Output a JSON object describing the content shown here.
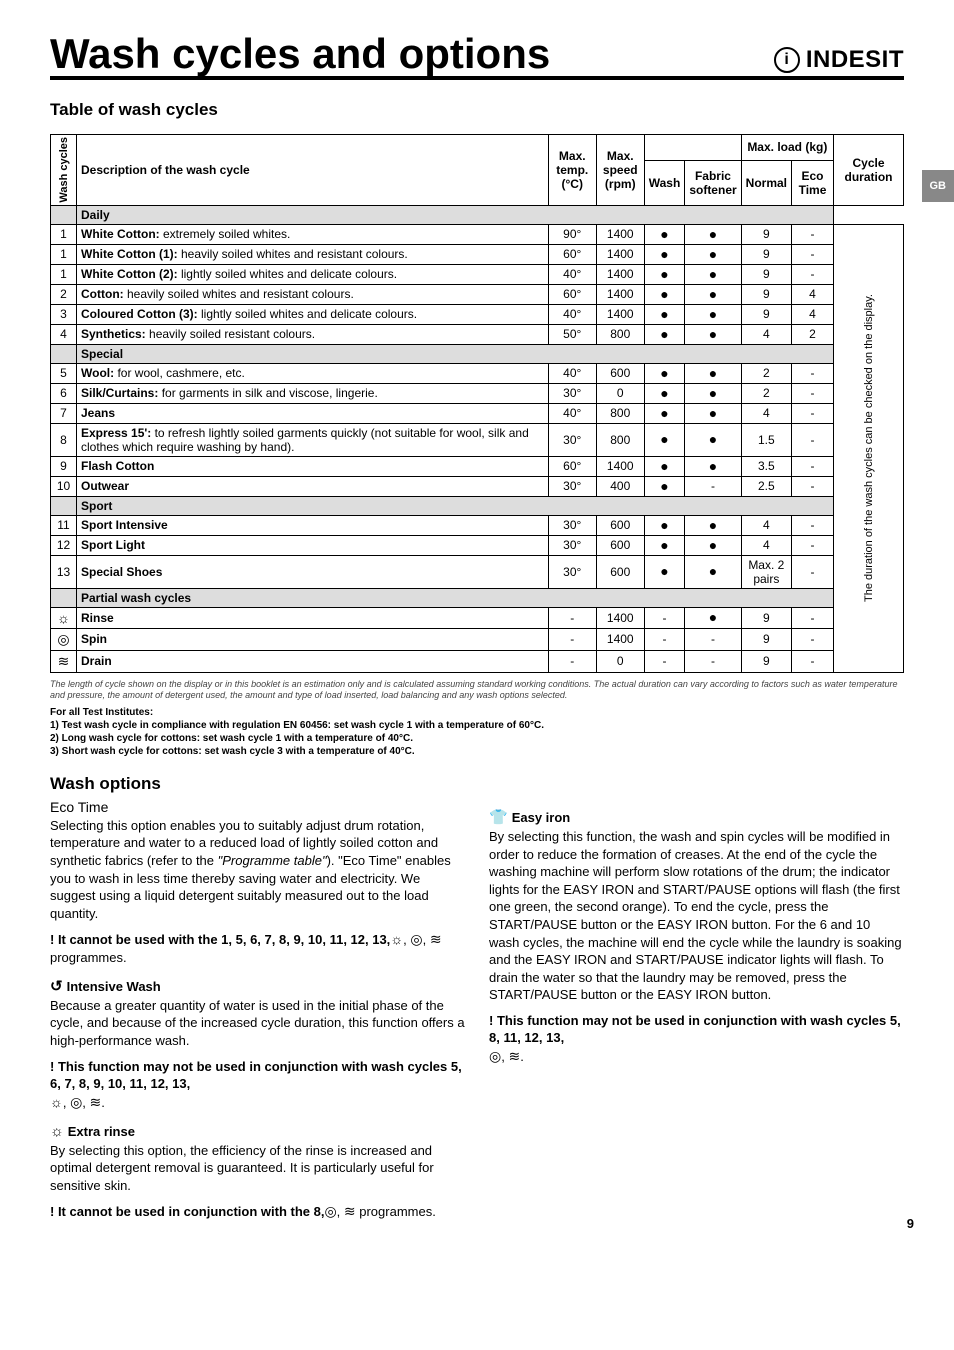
{
  "page": {
    "title": "Wash cycles and options",
    "brand": "INDESIT",
    "lang_tab": "GB",
    "page_number": "9"
  },
  "table": {
    "heading": "Table of wash cycles",
    "headers": {
      "wash_cycles": "Wash cycles",
      "description": "Description of the wash cycle",
      "max_temp": "Max. temp. (°C)",
      "max_speed": "Max. speed (rpm)",
      "wash": "Wash",
      "softener": "Fabric softener",
      "max_load": "Max. load (kg)",
      "normal": "Normal",
      "eco_time": "Eco Time",
      "duration": "Cycle duration",
      "duration_note": "The duration of the wash cycles can be checked on the display."
    },
    "sections": [
      {
        "label": "Daily"
      },
      {
        "label": "Special"
      },
      {
        "label": "Sport"
      },
      {
        "label": "Partial wash cycles"
      }
    ],
    "rows": {
      "r0": {
        "n": "1",
        "d": "White Cotton:",
        "d2": " extremely soiled whites.",
        "t": "90°",
        "s": "1400",
        "w": "●",
        "f": "●",
        "nl": "9",
        "e": "-"
      },
      "r1": {
        "n": "1",
        "d": "White Cotton (1):",
        "d2": " heavily soiled whites and resistant colours.",
        "t": "60°",
        "s": "1400",
        "w": "●",
        "f": "●",
        "nl": "9",
        "e": "-"
      },
      "r2": {
        "n": "1",
        "d": "White Cotton (2):",
        "d2": " lightly soiled whites and delicate colours.",
        "t": "40°",
        "s": "1400",
        "w": "●",
        "f": "●",
        "nl": "9",
        "e": "-"
      },
      "r3": {
        "n": "2",
        "d": "Cotton:",
        "d2": " heavily soiled whites and resistant colours.",
        "t": "60°",
        "s": "1400",
        "w": "●",
        "f": "●",
        "nl": "9",
        "e": "4"
      },
      "r4": {
        "n": "3",
        "d": "Coloured Cotton (3):",
        "d2": " lightly soiled whites and delicate colours.",
        "t": "40°",
        "s": "1400",
        "w": "●",
        "f": "●",
        "nl": "9",
        "e": "4"
      },
      "r5": {
        "n": "4",
        "d": "Synthetics:",
        "d2": " heavily soiled resistant colours.",
        "t": "50°",
        "s": "800",
        "w": "●",
        "f": "●",
        "nl": "4",
        "e": "2"
      },
      "r6": {
        "n": "5",
        "d": "Wool:",
        "d2": " for wool, cashmere, etc.",
        "t": "40°",
        "s": "600",
        "w": "●",
        "f": "●",
        "nl": "2",
        "e": "-"
      },
      "r7": {
        "n": "6",
        "d": "Silk/Curtains:",
        "d2": " for garments in silk and viscose, lingerie.",
        "t": "30°",
        "s": "0",
        "w": "●",
        "f": "●",
        "nl": "2",
        "e": "-"
      },
      "r8": {
        "n": "7",
        "d": "Jeans",
        "d2": "",
        "t": "40°",
        "s": "800",
        "w": "●",
        "f": "●",
        "nl": "4",
        "e": "-"
      },
      "r9": {
        "n": "8",
        "d": "Express 15':",
        "d2": " to refresh lightly soiled garments quickly (not suitable for wool, silk and clothes which require washing by hand).",
        "t": "30°",
        "s": "800",
        "w": "●",
        "f": "●",
        "nl": "1.5",
        "e": "-"
      },
      "r10": {
        "n": "9",
        "d": "Flash Cotton",
        "d2": "",
        "t": "60°",
        "s": "1400",
        "w": "●",
        "f": "●",
        "nl": "3.5",
        "e": "-"
      },
      "r11": {
        "n": "10",
        "d": "Outwear",
        "d2": "",
        "t": "30°",
        "s": "400",
        "w": "●",
        "f": "-",
        "nl": "2.5",
        "e": "-"
      },
      "r12": {
        "n": "11",
        "d": "Sport Intensive",
        "d2": "",
        "t": "30°",
        "s": "600",
        "w": "●",
        "f": "●",
        "nl": "4",
        "e": "-"
      },
      "r13": {
        "n": "12",
        "d": "Sport Light",
        "d2": "",
        "t": "30°",
        "s": "600",
        "w": "●",
        "f": "●",
        "nl": "4",
        "e": "-"
      },
      "r14": {
        "n": "13",
        "d": "Special Shoes",
        "d2": "",
        "t": "30°",
        "s": "600",
        "w": "●",
        "f": "●",
        "nl": "Max. 2 pairs",
        "e": "-"
      },
      "r15": {
        "n": "",
        "sym": "rinse",
        "d": "Rinse",
        "d2": "",
        "t": "-",
        "s": "1400",
        "w": "-",
        "f": "●",
        "nl": "9",
        "e": "-"
      },
      "r16": {
        "n": "",
        "sym": "spin",
        "d": "Spin",
        "d2": "",
        "t": "-",
        "s": "1400",
        "w": "-",
        "f": "-",
        "nl": "9",
        "e": "-"
      },
      "r17": {
        "n": "",
        "sym": "drain",
        "d": "Drain",
        "d2": "",
        "t": "-",
        "s": "0",
        "w": "-",
        "f": "-",
        "nl": "9",
        "e": "-"
      }
    }
  },
  "footnotes": {
    "italic": "The length of cycle shown on the display or in this booklet is an estimation only and is calculated assuming standard working conditions. The actual duration can vary according to factors such as water temperature and pressure, the amount of detergent used, the amount and type of load inserted, load balancing and any wash options selected.",
    "bold_head": "For all Test Institutes:",
    "l1": "1) Test wash cycle in compliance with regulation EN 60456: set wash cycle 1 with a temperature of 60°C.",
    "l2": "2) Long wash cycle for cottons: set wash cycle 1 with a temperature of 40°C.",
    "l3": "3) Short wash cycle for cottons: set wash cycle 3 with a temperature of 40°C."
  },
  "options": {
    "heading": "Wash options",
    "eco": {
      "title": "Eco Time",
      "body": "Selecting this option enables you to suitably adjust drum rotation, temperature and water to a reduced load of lightly soiled cotton and synthetic fabrics (refer to the ",
      "body_i": "\"Programme table\"",
      "body2": "). \"Eco Time\" enables you to wash in less time thereby saving water and electricity. We suggest using a liquid detergent suitably measured out to the load quantity.",
      "warn": "! It cannot be used with the 1, 5, 6, 7, 8, 9, 10, 11, 12, 13, ",
      "warn2": " programmes."
    },
    "intensive": {
      "title": "Intensive Wash",
      "body": "Because a greater quantity of water is used in the initial phase of the cycle, and because of the increased cycle duration, this function offers a high-performance wash.",
      "warn": "! This function may not be used in conjunction with wash cycles 5, 6, 7, 8, 9, 10, 11, 12, 13, "
    },
    "extra": {
      "title": "Extra rinse",
      "body": "By selecting this option, the efficiency of the rinse is increased and optimal detergent removal is guaranteed. It is particularly useful for sensitive skin.",
      "warn": "! It cannot be used in conjunction with the 8, ",
      "warn2": " programmes."
    },
    "easy": {
      "title": "Easy iron",
      "body": "By selecting this function, the wash and spin cycles will be modified in order to reduce the formation of creases. At the end of the cycle the washing machine will perform slow rotations of the drum; the indicator lights for the EASY IRON and START/PAUSE options will flash (the first one green, the second orange). To end the cycle, press the START/PAUSE button or the EASY IRON button. For the 6 and 10 wash cycles, the machine will end the cycle while the laundry is soaking and the EASY IRON and START/PAUSE indicator lights will flash. To drain the water so that the laundry may be removed, press the START/PAUSE button or the EASY IRON button.",
      "warn": "! This function may not be used in conjunction with wash cycles 5, 8, 11, 12, 13, "
    }
  },
  "symbols": {
    "rinse": "☼",
    "spin": "◎",
    "drain": "≋",
    "intensive_icon": "↺",
    "extra_icon": "☼",
    "easy_icon": "👕",
    "dot": "."
  }
}
